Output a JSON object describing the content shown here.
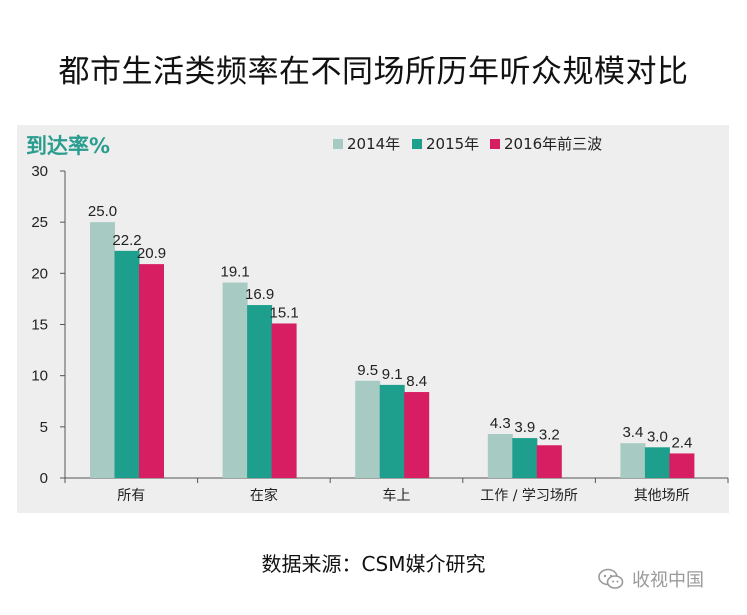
{
  "page": {
    "title": "都市生活类频率在不同场所历年听众规模对比",
    "source": "数据来源：CSM媒介研究",
    "watermark": "收视中国",
    "watermark_icon": "wechat-icon"
  },
  "chart_data": {
    "type": "bar",
    "title": "都市生活类频率在不同场所历年听众规模对比",
    "ylabel": "到达率%",
    "xlabel": "",
    "ylim": [
      0,
      30
    ],
    "yticks": [
      0,
      5,
      10,
      15,
      20,
      25,
      30
    ],
    "grid": false,
    "legend_position": "top",
    "categories": [
      "所有",
      "在家",
      "车上",
      "工作 / 学习场所",
      "其他场所"
    ],
    "series": [
      {
        "name": "2014年",
        "color": "#a7cbc3",
        "values": [
          25.0,
          19.1,
          9.5,
          4.3,
          3.4
        ]
      },
      {
        "name": "2015年",
        "color": "#1e9e8c",
        "values": [
          22.2,
          16.9,
          9.1,
          3.9,
          3.0
        ]
      },
      {
        "name": "2016年前三波",
        "color": "#d81e62",
        "values": [
          20.9,
          15.1,
          8.4,
          3.2,
          2.4
        ]
      }
    ]
  }
}
